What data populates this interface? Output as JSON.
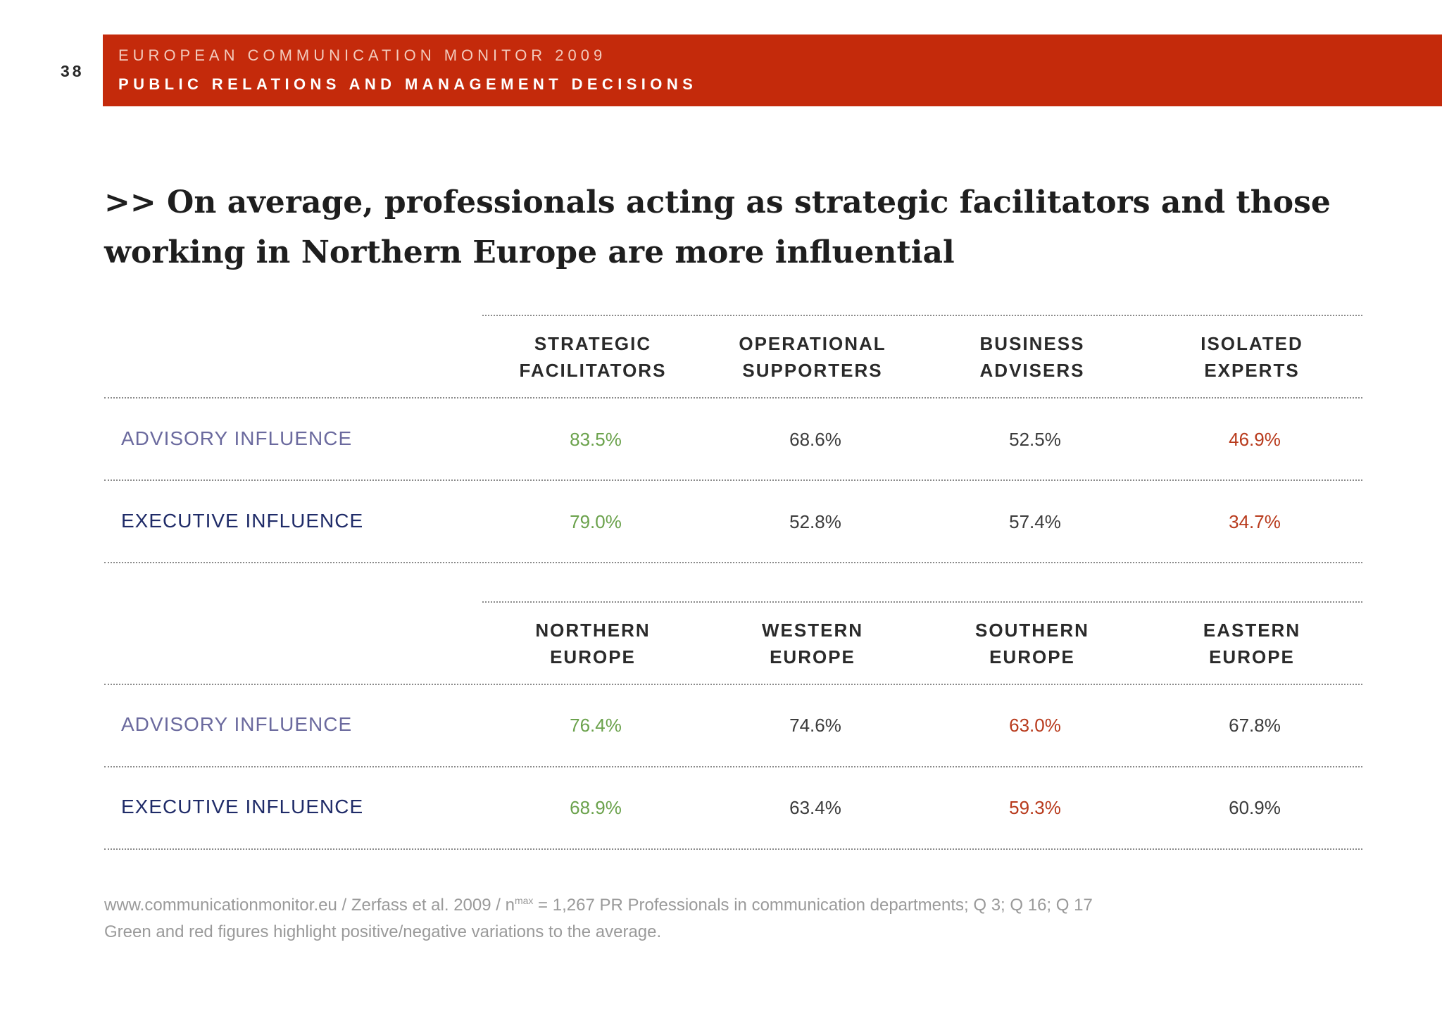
{
  "page_number": "38",
  "header": {
    "series": "EUROPEAN COMMUNICATION MONITOR 2009",
    "chapter": "PUBLIC RELATIONS AND MANAGEMENT DECISIONS"
  },
  "headline": {
    "line1": ">> On average, professionals acting as strategic facilitators and those",
    "line2": "working in Northern Europe are more influential"
  },
  "tables": [
    {
      "columns": [
        {
          "line1": "STRATEGIC",
          "line2": "FACILITATORS"
        },
        {
          "line1": "OPERATIONAL",
          "line2": "SUPPORTERS"
        },
        {
          "line1": "BUSINESS",
          "line2": "ADVISERS"
        },
        {
          "line1": "ISOLATED",
          "line2": "EXPERTS"
        }
      ],
      "rows": [
        {
          "label": "ADVISORY INFLUENCE",
          "values": [
            "83.5%",
            "68.6%",
            "52.5%",
            "46.9%"
          ],
          "highlights": [
            "positive",
            "neutral",
            "neutral",
            "negative"
          ]
        },
        {
          "label": "EXECUTIVE INFLUENCE",
          "values": [
            "79.0%",
            "52.8%",
            "57.4%",
            "34.7%"
          ],
          "highlights": [
            "positive",
            "neutral",
            "neutral",
            "negative"
          ]
        }
      ]
    },
    {
      "columns": [
        {
          "line1": "NORTHERN",
          "line2": "EUROPE"
        },
        {
          "line1": "WESTERN",
          "line2": "EUROPE"
        },
        {
          "line1": "SOUTHERN",
          "line2": "EUROPE"
        },
        {
          "line1": "EASTERN",
          "line2": "EUROPE"
        }
      ],
      "rows": [
        {
          "label": "ADVISORY INFLUENCE",
          "values": [
            "76.4%",
            "74.6%",
            "63.0%",
            "67.8%"
          ],
          "highlights": [
            "positive",
            "neutral",
            "negative",
            "neutral"
          ]
        },
        {
          "label": "EXECUTIVE INFLUENCE",
          "values": [
            "68.9%",
            "63.4%",
            "59.3%",
            "60.9%"
          ],
          "highlights": [
            "positive",
            "neutral",
            "negative",
            "neutral"
          ]
        }
      ]
    }
  ],
  "footnote": {
    "source_before": "www.communicationmonitor.eu / Zerfass et al. 2009 / n",
    "source_sup": "max",
    "source_after": " = 1,267 PR Professionals in communication departments; Q 3; Q 16; Q 17",
    "note": "Green and red figures highlight positive/negative variations to the average."
  },
  "colors": {
    "header_band": "#c42a0b",
    "positive": "#6ba24c",
    "negative": "#b83a1c",
    "advisory_label": "#6b6a9e",
    "executive_label": "#1f2b68"
  }
}
